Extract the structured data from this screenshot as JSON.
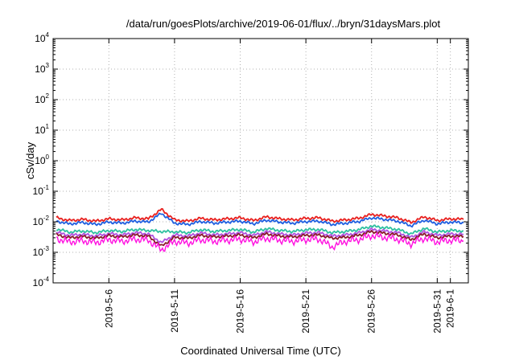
{
  "chart_data": {
    "type": "line",
    "title": "/data/run/goesPlots/archive/2019-06-01/flux/../bryn/31daysMars.plot",
    "xlabel": "Coordinated Universal Time (UTC)",
    "ylabel": "cSv/day",
    "yscale": "log",
    "ylim": [
      0.0001,
      10000
    ],
    "xlim": [
      "2019-05-02",
      "2019-06-02"
    ],
    "grid": true,
    "legend": "none",
    "y_ticks": [
      {
        "base": "10",
        "exp": "4"
      },
      {
        "base": "10",
        "exp": "3"
      },
      {
        "base": "10",
        "exp": "2"
      },
      {
        "base": "10",
        "exp": "1"
      },
      {
        "base": "10",
        "exp": "0"
      },
      {
        "base": "10",
        "exp": "-1"
      },
      {
        "base": "10",
        "exp": "-2"
      },
      {
        "base": "10",
        "exp": "-3"
      },
      {
        "base": "10",
        "exp": "-4"
      }
    ],
    "x_ticks": [
      "2019-5-6",
      "2019-5-11",
      "2019-5-16",
      "2019-5-21",
      "2019-5-26",
      "2019-5-31",
      "2019-6-1"
    ],
    "x_dates": [
      "2019-05-02",
      "2019-05-03",
      "2019-05-04",
      "2019-05-05",
      "2019-05-06",
      "2019-05-07",
      "2019-05-08",
      "2019-05-09",
      "2019-05-10",
      "2019-05-11",
      "2019-05-12",
      "2019-05-13",
      "2019-05-14",
      "2019-05-15",
      "2019-05-16",
      "2019-05-17",
      "2019-05-18",
      "2019-05-19",
      "2019-05-20",
      "2019-05-21",
      "2019-05-22",
      "2019-05-23",
      "2019-05-24",
      "2019-05-25",
      "2019-05-26",
      "2019-05-27",
      "2019-05-28",
      "2019-05-29",
      "2019-05-30",
      "2019-05-31",
      "2019-06-01",
      "2019-06-02"
    ],
    "series": [
      {
        "color": "#e8201e",
        "values": [
          0.0135,
          0.011,
          0.012,
          0.0105,
          0.0125,
          0.0115,
          0.0135,
          0.0125,
          0.0255,
          0.0115,
          0.0105,
          0.013,
          0.0115,
          0.0125,
          0.0135,
          0.011,
          0.0145,
          0.0125,
          0.0115,
          0.013,
          0.0135,
          0.0105,
          0.0115,
          0.013,
          0.0175,
          0.0155,
          0.0135,
          0.0095,
          0.0145,
          0.011,
          0.0125,
          0.012
        ]
      },
      {
        "color": "#1f5fe0",
        "values": [
          0.0105,
          0.0085,
          0.0095,
          0.0082,
          0.0098,
          0.009,
          0.0105,
          0.0098,
          0.019,
          0.009,
          0.0082,
          0.0102,
          0.009,
          0.0098,
          0.0105,
          0.0086,
          0.0113,
          0.0098,
          0.009,
          0.0102,
          0.0105,
          0.0082,
          0.009,
          0.0102,
          0.0135,
          0.012,
          0.0105,
          0.0074,
          0.0113,
          0.0086,
          0.0098,
          0.0093
        ]
      },
      {
        "color": "#2ec0a0",
        "values": [
          0.0058,
          0.0046,
          0.005,
          0.0044,
          0.0052,
          0.0048,
          0.0056,
          0.0052,
          0.0048,
          0.0047,
          0.0044,
          0.0055,
          0.0048,
          0.0052,
          0.0056,
          0.0046,
          0.006,
          0.0052,
          0.0048,
          0.0055,
          0.0056,
          0.0044,
          0.0048,
          0.0055,
          0.0072,
          0.0064,
          0.0056,
          0.004,
          0.006,
          0.0046,
          0.0052,
          0.005
        ]
      },
      {
        "color": "#b050e0",
        "values": [
          0.0045,
          0.0036,
          0.0039,
          0.0034,
          0.0041,
          0.0037,
          0.0044,
          0.004,
          0.0021,
          0.0037,
          0.0034,
          0.0043,
          0.0037,
          0.004,
          0.0044,
          0.0036,
          0.0047,
          0.004,
          0.0037,
          0.0043,
          0.0044,
          0.0034,
          0.0037,
          0.0043,
          0.0056,
          0.005,
          0.0044,
          0.0031,
          0.0047,
          0.0036,
          0.004,
          0.0039
        ]
      },
      {
        "color": "#8a1a2a",
        "values": [
          0.0038,
          0.003,
          0.0033,
          0.0029,
          0.0035,
          0.0032,
          0.0037,
          0.0034,
          0.0016,
          0.0031,
          0.0029,
          0.0036,
          0.0032,
          0.0034,
          0.0037,
          0.003,
          0.004,
          0.0034,
          0.0032,
          0.0036,
          0.0037,
          0.0029,
          0.0031,
          0.0036,
          0.0048,
          0.0042,
          0.0037,
          0.0026,
          0.004,
          0.003,
          0.0034,
          0.0033
        ]
      },
      {
        "color": "#ff10e0",
        "values": [
          0.0028,
          0.0022,
          0.0024,
          0.0021,
          0.0026,
          0.0023,
          0.0027,
          0.0025,
          0.0012,
          0.0023,
          0.002,
          0.0026,
          0.0023,
          0.0025,
          0.0027,
          0.0022,
          0.0029,
          0.0025,
          0.0023,
          0.0026,
          0.0027,
          0.0015,
          0.0023,
          0.0026,
          0.0035,
          0.0031,
          0.0027,
          0.0019,
          0.0029,
          0.0022,
          0.0025,
          0.0024
        ]
      }
    ]
  }
}
